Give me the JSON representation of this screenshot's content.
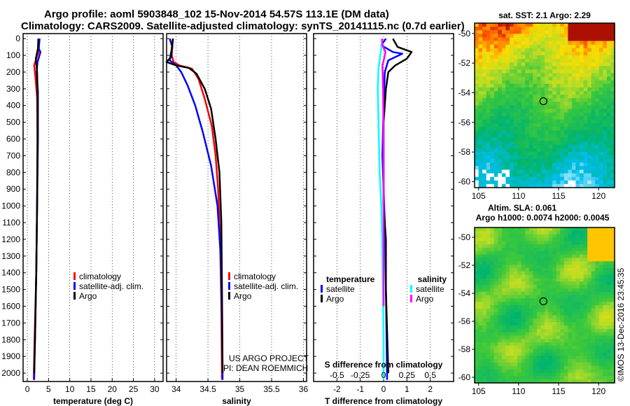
{
  "header": {
    "title_line1": "Argo profile: aoml 5903848_102 15-Nov-2014 54.57S 113.1E (DM data)",
    "title_line2": "Climatology: CARS2009. Satellite-adjusted climatology: synTS_20141115.nc (0.7d earlier)"
  },
  "colors": {
    "climatology": "#ff0000",
    "satellite": "#0000ff",
    "argo": "#000000",
    "temp_satellite_diff": "#0000ff",
    "temp_argo_diff": "#000000",
    "sal_satellite_diff": "#00ffff",
    "sal_argo_diff": "#ff00ff"
  },
  "credits": {
    "project": "US ARGO PROJECT",
    "pi": "PI: DEAN ROEMMICH",
    "imos": "©IMOS 13-Dec-2016 23:45:35"
  },
  "chart_data": [
    {
      "id": "temperature",
      "type": "line",
      "xlabel": "temperature (deg C)",
      "ylabel": "",
      "xlim": [
        -1,
        32
      ],
      "ylim": [
        2050,
        -30
      ],
      "xticks": [
        0,
        5,
        10,
        15,
        20,
        25,
        30
      ],
      "xticklabels": [
        "0",
        "5",
        "10",
        "15",
        "20",
        "25",
        "30"
      ],
      "yticks": [
        0,
        100,
        200,
        300,
        400,
        500,
        600,
        700,
        800,
        900,
        1000,
        1100,
        1200,
        1300,
        1400,
        1500,
        1600,
        1700,
        1800,
        1900,
        2000
      ],
      "yticklabels": [
        "0",
        "100",
        "200",
        "300",
        "400",
        "500",
        "600",
        "700",
        "800",
        "900",
        "1000",
        "1100",
        "1200",
        "1300",
        "1400",
        "1500",
        "1600",
        "1700",
        "1800",
        "1900",
        "2000"
      ],
      "legend": [
        "climatology",
        "satellite-adj. clim.",
        "Argo"
      ],
      "series": [
        {
          "name": "climatology",
          "color": "#ff0000",
          "points": [
            [
              2.7,
              0
            ],
            [
              2.6,
              80
            ],
            [
              1.6,
              160
            ],
            [
              1.9,
              230
            ],
            [
              2.3,
              350
            ],
            [
              2.4,
              600
            ],
            [
              2.3,
              1000
            ],
            [
              2.1,
              1400
            ],
            [
              1.7,
              1800
            ],
            [
              1.5,
              2040
            ]
          ]
        },
        {
          "name": "satellite-adj. clim.",
          "color": "#0000ff",
          "points": [
            [
              2.9,
              0
            ],
            [
              2.7,
              60
            ],
            [
              3.1,
              80
            ],
            [
              2.4,
              140
            ],
            [
              2.2,
              200
            ],
            [
              2.5,
              320
            ],
            [
              2.5,
              600
            ],
            [
              2.3,
              1000
            ],
            [
              2.1,
              1400
            ],
            [
              1.8,
              1800
            ],
            [
              1.6,
              2040
            ]
          ]
        },
        {
          "name": "Argo",
          "color": "#000000",
          "points": [
            [
              2.6,
              0
            ],
            [
              2.5,
              60
            ],
            [
              2.0,
              120
            ],
            [
              2.3,
              200
            ],
            [
              2.4,
              320
            ],
            [
              2.4,
              600
            ],
            [
              2.3,
              1000
            ],
            [
              2.1,
              1400
            ],
            [
              1.8,
              1800
            ],
            [
              1.6,
              2000
            ]
          ]
        }
      ]
    },
    {
      "id": "salinity",
      "type": "line",
      "xlabel": "salinity",
      "xlim": [
        33.85,
        36.05
      ],
      "ylim": [
        2050,
        -30
      ],
      "xticks": [
        34,
        34.5,
        35,
        35.5,
        36
      ],
      "xticklabels": [
        "34",
        "34.5",
        "35",
        "35.5",
        "36"
      ],
      "legend": [
        "climatology",
        "satellite-adj. clim.",
        "Argo"
      ],
      "series": [
        {
          "name": "climatology",
          "color": "#ff0000",
          "points": [
            [
              33.95,
              0
            ],
            [
              33.93,
              100
            ],
            [
              33.96,
              140
            ],
            [
              34.05,
              160
            ],
            [
              34.25,
              180
            ],
            [
              34.35,
              240
            ],
            [
              34.45,
              360
            ],
            [
              34.56,
              520
            ],
            [
              34.62,
              700
            ],
            [
              34.66,
              900
            ],
            [
              34.69,
              1200
            ],
            [
              34.71,
              1600
            ],
            [
              34.72,
              2040
            ]
          ]
        },
        {
          "name": "satellite-adj. clim.",
          "color": "#0000ff",
          "points": [
            [
              33.9,
              0
            ],
            [
              33.94,
              50
            ],
            [
              33.91,
              100
            ],
            [
              33.9,
              130
            ],
            [
              34.0,
              160
            ],
            [
              34.08,
              200
            ],
            [
              34.18,
              280
            ],
            [
              34.3,
              400
            ],
            [
              34.42,
              560
            ],
            [
              34.55,
              760
            ],
            [
              34.65,
              1000
            ],
            [
              34.7,
              1300
            ],
            [
              34.72,
              1700
            ],
            [
              34.73,
              2040
            ]
          ]
        },
        {
          "name": "Argo",
          "color": "#000000",
          "points": [
            [
              33.95,
              0
            ],
            [
              33.93,
              60
            ],
            [
              33.92,
              110
            ],
            [
              33.85,
              140
            ],
            [
              34.0,
              160
            ],
            [
              34.2,
              175
            ],
            [
              34.32,
              210
            ],
            [
              34.45,
              300
            ],
            [
              34.55,
              420
            ],
            [
              34.62,
              600
            ],
            [
              34.68,
              800
            ],
            [
              34.71,
              1100
            ],
            [
              34.72,
              1500
            ],
            [
              34.73,
              2000
            ]
          ]
        }
      ]
    },
    {
      "id": "difference",
      "type": "line",
      "xlabel": "T difference from climatology",
      "xlabel_top": "S difference from climatology",
      "xlim": [
        -3,
        3
      ],
      "ylim": [
        2050,
        -30
      ],
      "xticks": [
        -2,
        -1,
        0,
        1,
        2
      ],
      "xticklabels": [
        "-2",
        "-1",
        "0",
        "1",
        "2"
      ],
      "sal_xticks": [
        -0.5,
        -0.25,
        0,
        0.25,
        0.5
      ],
      "sal_xticklabels": [
        "-0.5",
        "-0.25",
        "0",
        "0.25",
        "0.5"
      ],
      "legend_temperature_title": "temperature",
      "legend_salinity_title": "salinity",
      "legend_temperature": [
        "satellite",
        "Argo"
      ],
      "legend_salinity": [
        "satellite",
        "Argo"
      ],
      "series": [
        {
          "name": "T satellite",
          "color": "#0000ff",
          "points": [
            [
              0.1,
              0
            ],
            [
              -0.1,
              40
            ],
            [
              0.4,
              80
            ],
            [
              0.8,
              90
            ],
            [
              0.2,
              130
            ],
            [
              0.05,
              200
            ],
            [
              0.0,
              400
            ],
            [
              -0.05,
              700
            ],
            [
              0.05,
              1100
            ],
            [
              0.1,
              1500
            ],
            [
              0.15,
              2040
            ]
          ]
        },
        {
          "name": "T Argo",
          "color": "#000000",
          "points": [
            [
              0.4,
              0
            ],
            [
              0.6,
              50
            ],
            [
              1.2,
              80
            ],
            [
              1.0,
              120
            ],
            [
              0.5,
              160
            ],
            [
              0.2,
              200
            ],
            [
              0.1,
              300
            ],
            [
              0.0,
              500
            ],
            [
              0.0,
              800
            ],
            [
              0.0,
              1000
            ],
            [
              0.1,
              1200
            ],
            [
              0.1,
              1500
            ],
            [
              0.2,
              2000
            ]
          ]
        },
        {
          "name": "S satellite",
          "color": "#00ffff",
          "points": [
            [
              -0.05,
              0
            ],
            [
              -0.12,
              80
            ],
            [
              -0.22,
              180
            ],
            [
              -0.25,
              300
            ],
            [
              -0.22,
              500
            ],
            [
              -0.17,
              800
            ],
            [
              -0.1,
              1000
            ],
            [
              -0.06,
              1200
            ],
            [
              -0.03,
              1500
            ],
            [
              0.0,
              1800
            ],
            [
              0.0,
              2040
            ]
          ]
        },
        {
          "name": "S Argo",
          "color": "#ff00ff",
          "points": [
            [
              -0.07,
              0
            ],
            [
              -0.05,
              40
            ],
            [
              0.08,
              80
            ],
            [
              0.02,
              120
            ],
            [
              -0.05,
              160
            ],
            [
              -0.04,
              220
            ],
            [
              -0.02,
              300
            ],
            [
              -0.01,
              500
            ],
            [
              0.0,
              800
            ],
            [
              0.0,
              1100
            ],
            [
              0.0,
              1500
            ],
            [
              0.0,
              1600
            ]
          ]
        }
      ]
    },
    {
      "id": "sst_map",
      "type": "heatmap",
      "title": "sat. SST: 2.1 Argo: 2.29",
      "xlim": [
        104.5,
        122
      ],
      "ylim": [
        -60.4,
        -49.3
      ],
      "xticks": [
        105,
        110,
        115,
        120
      ],
      "xticklabels": [
        "105",
        "110",
        "115",
        "120"
      ],
      "yticks": [
        -50,
        -52,
        -54,
        -56,
        -58,
        -60
      ],
      "yticklabels": [
        "-50",
        "-52",
        "-54",
        "-56",
        "-58",
        "-60"
      ],
      "marker": {
        "lon": 113.1,
        "lat": -54.57
      }
    },
    {
      "id": "sla_map",
      "type": "heatmap",
      "title_line1": "Altim. SLA: 0.061",
      "title_line2": "Argo h1000: 0.0074 h2000: 0.0045",
      "xlim": [
        104.5,
        122
      ],
      "ylim": [
        -60.4,
        -49.3
      ],
      "xticks": [
        105,
        110,
        115,
        120
      ],
      "xticklabels": [
        "105",
        "110",
        "115",
        "120"
      ],
      "yticks": [
        -50,
        -52,
        -54,
        -56,
        -58,
        -60
      ],
      "yticklabels": [
        "-50",
        "-52",
        "-54",
        "-56",
        "-58",
        "-60"
      ],
      "marker": {
        "lon": 113.1,
        "lat": -54.57
      }
    }
  ]
}
